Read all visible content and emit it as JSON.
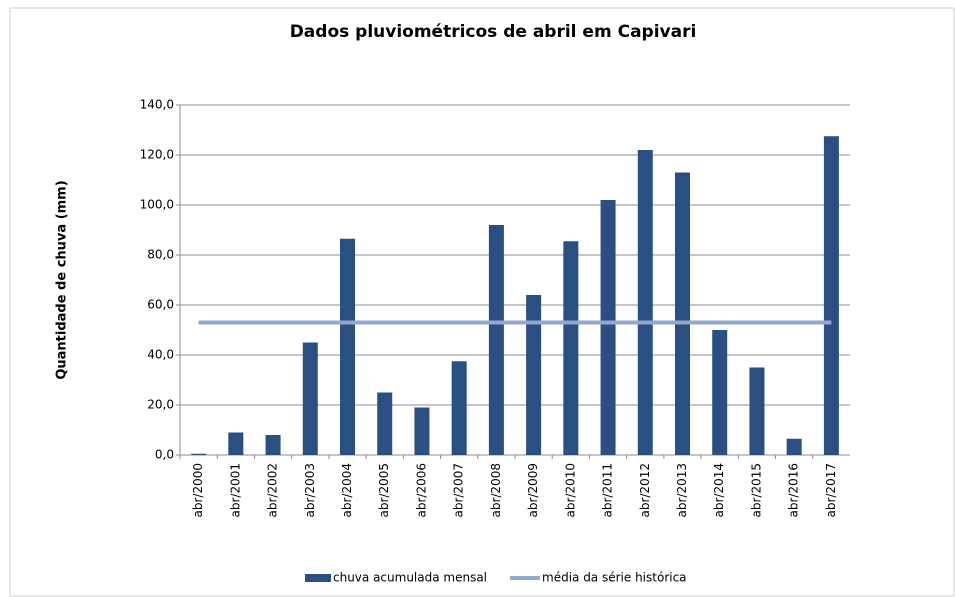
{
  "chart_data": {
    "type": "bar_line",
    "title": "Dados pluviométricos de abril em Capivari",
    "y_label": "Quantidade de chuva (mm)",
    "categories": [
      "abr/2000",
      "abr/2001",
      "abr/2002",
      "abr/2003",
      "abr/2004",
      "abr/2005",
      "abr/2006",
      "abr/2007",
      "abr/2008",
      "abr/2009",
      "abr/2010",
      "abr/2011",
      "abr/2012",
      "abr/2013",
      "abr/2014",
      "abr/2015",
      "abr/2016",
      "abr/2017"
    ],
    "series": [
      {
        "name": "chuva acumulada mensal",
        "type": "bar",
        "color": "#2a4f82",
        "values": [
          0.5,
          9,
          8,
          45,
          86.5,
          25,
          19,
          37.5,
          92,
          64,
          85.5,
          102,
          122,
          113,
          50,
          35,
          6.5,
          127.5
        ]
      },
      {
        "name": "média da série histórica",
        "type": "line",
        "color": "#91a9cc",
        "values": [
          53,
          53,
          53,
          53,
          53,
          53,
          53,
          53,
          53,
          53,
          53,
          53,
          53,
          53,
          53,
          53,
          53,
          53
        ]
      }
    ],
    "ylim": [
      0,
      140
    ],
    "yticks": [
      {
        "value": 0,
        "label": "0,0"
      },
      {
        "value": 20,
        "label": "20,0"
      },
      {
        "value": 40,
        "label": "40,0"
      },
      {
        "value": 60,
        "label": "60,0"
      },
      {
        "value": 80,
        "label": "80,0"
      },
      {
        "value": 100,
        "label": "100,0"
      },
      {
        "value": 120,
        "label": "120,0"
      },
      {
        "value": 140,
        "label": "140,0"
      }
    ],
    "grid": true,
    "legend": "bottom"
  }
}
